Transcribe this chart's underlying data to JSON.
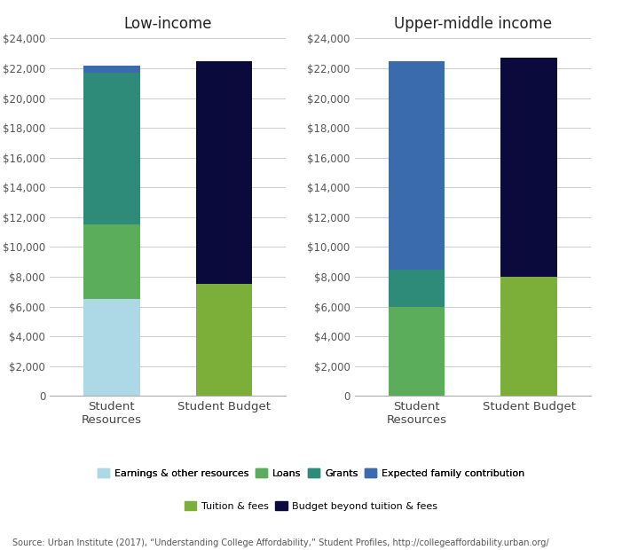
{
  "left_title": "Low-income",
  "right_title": "Upper-middle income",
  "source_text": "Source: Urban Institute (2017), “Understanding College Affordability,” Student Profiles, http://collegeaffordability.urban.org/",
  "low_income": {
    "student_resources": {
      "earnings": 6500,
      "loans": 5000,
      "grants": 10200,
      "expected_family": 500
    },
    "student_budget": {
      "tuition_fees": 7500,
      "beyond_tuition": 15000
    }
  },
  "upper_middle": {
    "student_resources": {
      "earnings": 0,
      "loans": 6000,
      "grants": 2500,
      "expected_family": 14000
    },
    "student_budget": {
      "tuition_fees": 8000,
      "beyond_tuition": 14700
    }
  },
  "colors": {
    "earnings": "#ADD8E6",
    "loans": "#5BAD5B",
    "grants": "#2E8B7A",
    "expected_family": "#3A6BAD",
    "tuition_fees": "#7BAF3A",
    "beyond_tuition": "#0A0A3C"
  },
  "legend_labels": {
    "earnings": "Earnings & other resources",
    "loans": "Loans",
    "grants": "Grants",
    "expected_family": "Expected family contribution",
    "tuition_fees": "Tuition & fees",
    "beyond_tuition": "Budget beyond tuition & fees"
  },
  "ylim": [
    0,
    24000
  ],
  "yticks": [
    0,
    2000,
    4000,
    6000,
    8000,
    10000,
    12000,
    14000,
    16000,
    18000,
    20000,
    22000,
    24000
  ],
  "bar_width": 0.5,
  "background_color": "#FFFFFF",
  "grid_color": "#CCCCCC"
}
